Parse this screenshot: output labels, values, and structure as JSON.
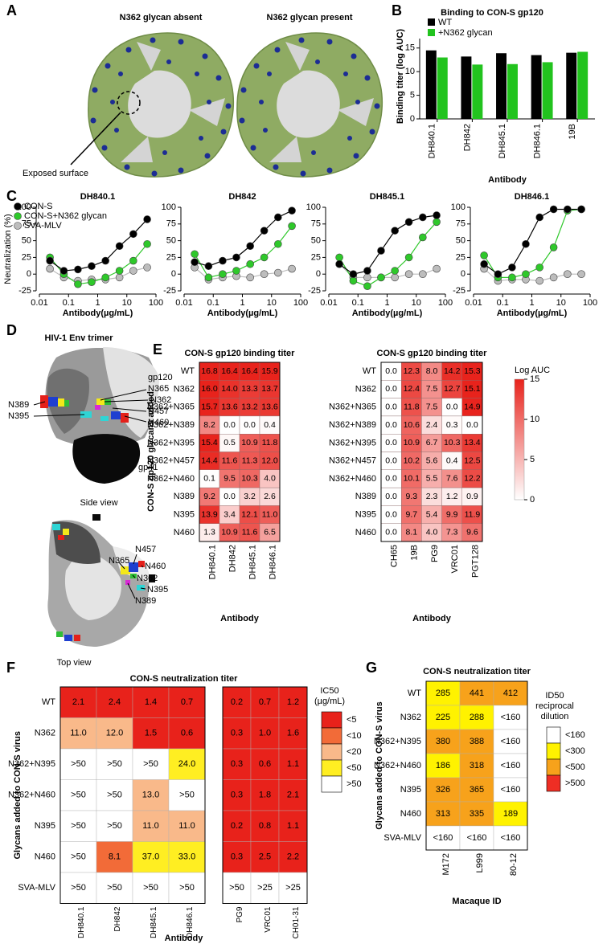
{
  "panel_labels": [
    "A",
    "B",
    "C",
    "D",
    "E",
    "F",
    "G"
  ],
  "structures": {
    "A": {
      "titles": [
        "N362 glycan absent",
        "N362 glycan present"
      ],
      "annotation": "Exposed surface"
    },
    "D": {
      "title": "HIV-1 Env trimer",
      "side_labels": [
        "gp120",
        "N365",
        "N362",
        "N457",
        "N460",
        "N389",
        "N395",
        "gp41"
      ],
      "side_caption": "Side view",
      "top_labels": [
        "N365",
        "N457",
        "N460",
        "N362",
        "N395",
        "N389"
      ],
      "top_caption": "Top view"
    }
  },
  "chart_data": [
    {
      "type": "bar",
      "title": "Binding to CON-S gp120",
      "categories": [
        "DH840.1",
        "DH842",
        "DH845.1",
        "DH846.1",
        "19B"
      ],
      "series": [
        {
          "name": "WT",
          "color": "#000000",
          "values": [
            14.5,
            13.2,
            13.9,
            13.5,
            14.0
          ]
        },
        {
          "name": "+N362 glycan",
          "color": "#22c31e",
          "values": [
            13.0,
            11.5,
            11.6,
            12.0,
            14.2
          ]
        }
      ],
      "ylim": [
        0,
        17
      ],
      "yticks": [
        0,
        5,
        10,
        15
      ],
      "y_label": "Binding titer (log AUC)",
      "x_label": "Antibody",
      "legend": "upper left"
    },
    {
      "type": "line",
      "log_x": true,
      "x": [
        0.023,
        0.069,
        0.21,
        0.62,
        1.85,
        5.6,
        16.7,
        50
      ],
      "xlim": [
        0.01,
        100
      ],
      "xticks": [
        0.01,
        0.1,
        1,
        10,
        100
      ],
      "ylim": [
        -25,
        100
      ],
      "yticks": [
        -25,
        0,
        25,
        50,
        75,
        100
      ],
      "y_label": "Neutralization (%)",
      "x_label": "Antibody(µg/mL)",
      "legend": "upper left",
      "series": [
        {
          "name": "CON-S",
          "color": "#000000"
        },
        {
          "name": "CON-S+N362 glycan",
          "color": "#2ec82a"
        },
        {
          "name": "SVA-MLV",
          "color": "#bdbdbd"
        }
      ],
      "panels": [
        {
          "title": "DH840.1",
          "values": [
            [
              20,
              5,
              7,
              12,
              20,
              42,
              60,
              82
            ],
            [
              25,
              0,
              -15,
              -12,
              -5,
              5,
              20,
              45
            ],
            [
              8,
              -5,
              -10,
              -8,
              -8,
              -5,
              5,
              10
            ]
          ]
        },
        {
          "title": "DH842",
          "values": [
            [
              18,
              12,
              20,
              25,
              42,
              65,
              85,
              95
            ],
            [
              30,
              -5,
              0,
              5,
              15,
              25,
              45,
              72
            ],
            [
              10,
              -8,
              -5,
              -3,
              -5,
              0,
              2,
              8
            ]
          ]
        },
        {
          "title": "DH845.1",
          "values": [
            [
              15,
              0,
              5,
              35,
              65,
              78,
              85,
              88
            ],
            [
              25,
              -10,
              -18,
              -5,
              5,
              25,
              55,
              78
            ],
            [
              15,
              -5,
              -5,
              -5,
              -5,
              0,
              0,
              8
            ]
          ]
        },
        {
          "title": "DH846.1",
          "values": [
            [
              15,
              0,
              10,
              45,
              85,
              97,
              97,
              97
            ],
            [
              28,
              -5,
              -5,
              0,
              10,
              40,
              95,
              97
            ],
            [
              8,
              -10,
              -8,
              -8,
              -10,
              -5,
              0,
              0
            ]
          ]
        }
      ]
    },
    {
      "type": "heatmap",
      "y_label": "CON-S gp120  glycans added",
      "rows": [
        "WT",
        "N362",
        "N362+N365",
        "N362+N389",
        "N362+N395",
        "N362+N457",
        "N362+N460",
        "N389",
        "N395",
        "N460"
      ],
      "zlim": [
        0,
        15
      ],
      "zticks": [
        0,
        5,
        10,
        15
      ],
      "colorbar_title": "Log AUC",
      "colors": [
        "#ffffff",
        "#e8231c"
      ],
      "charts": [
        {
          "title": "CON-S gp120 binding titer",
          "x_label": "Antibody",
          "columns": [
            "DH840.1",
            "DH842",
            "DH845.1",
            "DH846.1"
          ],
          "values": [
            [
              16.8,
              16.4,
              16.4,
              15.9
            ],
            [
              16.0,
              14.0,
              13.3,
              13.7
            ],
            [
              15.7,
              13.6,
              13.2,
              13.6
            ],
            [
              8.2,
              0.0,
              0.0,
              0.4
            ],
            [
              15.4,
              0.5,
              10.9,
              11.8
            ],
            [
              14.4,
              11.6,
              11.3,
              12.0
            ],
            [
              0.1,
              9.5,
              10.3,
              4.0
            ],
            [
              9.2,
              0.0,
              3.2,
              2.6
            ],
            [
              13.9,
              3.4,
              12.1,
              11.0
            ],
            [
              1.3,
              10.9,
              11.6,
              6.5
            ]
          ],
          "value_labels": [
            [
              "16.8",
              "16.4",
              "16.4",
              "15.9"
            ],
            [
              "16.0",
              "14.0",
              "13.3",
              "13.7"
            ],
            [
              "15.7",
              "13.6",
              "13.2",
              "13.6"
            ],
            [
              "8.2",
              "0.0",
              "0.0",
              "0.4"
            ],
            [
              "15.4",
              "0.5",
              "10.9",
              "11.8"
            ],
            [
              "14.4",
              "11.6",
              "11.3",
              "12.0"
            ],
            [
              "0.1",
              "9.5",
              "10.3",
              "4.0"
            ],
            [
              "9.2",
              "0.0",
              "3.2",
              "2.6"
            ],
            [
              "13.9",
              "3.4",
              "12.1",
              "11.0"
            ],
            [
              "1.3",
              "10.9",
              "11.6",
              "6.5"
            ]
          ]
        },
        {
          "title": "CON-S gp120 binding titer",
          "x_label": "Antibody",
          "columns": [
            "CH65",
            "19B",
            "PG9",
            "VRC01",
            "PGT128"
          ],
          "values": [
            [
              0.0,
              12.3,
              8.0,
              14.2,
              15.3
            ],
            [
              0.0,
              12.4,
              7.5,
              12.7,
              15.1
            ],
            [
              0.0,
              11.8,
              7.5,
              0.0,
              14.9
            ],
            [
              0.0,
              10.6,
              2.4,
              0.3,
              0.0
            ],
            [
              0.0,
              10.9,
              6.7,
              10.3,
              13.4
            ],
            [
              0.0,
              10.2,
              5.6,
              0.4,
              12.5
            ],
            [
              0.0,
              10.1,
              5.5,
              7.6,
              12.2
            ],
            [
              0.0,
              9.3,
              2.3,
              1.2,
              0.9
            ],
            [
              0.0,
              9.7,
              5.4,
              9.9,
              11.9
            ],
            [
              0.0,
              8.1,
              4.0,
              7.3,
              9.6
            ]
          ],
          "value_labels": [
            [
              "0.0",
              "12.3",
              "8.0",
              "14.2",
              "15.3"
            ],
            [
              "0.0",
              "12.4",
              "7.5",
              "12.7",
              "15.1"
            ],
            [
              "0.0",
              "11.8",
              "7.5",
              "0.0",
              "14.9"
            ],
            [
              "0.0",
              "10.6",
              "2.4",
              "0.3",
              "0.0"
            ],
            [
              "0.0",
              "10.9",
              "6.7",
              "10.3",
              "13.4"
            ],
            [
              "0.0",
              "10.2",
              "5.6",
              "0.4",
              "12.5"
            ],
            [
              "0.0",
              "10.1",
              "5.5",
              "7.6",
              "12.2"
            ],
            [
              "0.0",
              "9.3",
              "2.3",
              "1.2",
              "0.9"
            ],
            [
              "0.0",
              "9.7",
              "5.4",
              "9.9",
              "11.9"
            ],
            [
              "0.0",
              "8.1",
              "4.0",
              "7.3",
              "9.6"
            ]
          ]
        }
      ]
    },
    {
      "type": "table_heatmap",
      "title": "CON-S neutralization titer",
      "y_label": "Glycans added to CON-S virus",
      "x_label": "Antibody",
      "rows": [
        "WT",
        "N362",
        "N362+N395",
        "N362+N460",
        "N395",
        "N460",
        "SVA-MLV"
      ],
      "column_groups": [
        [
          "DH840.1",
          "DH842",
          "DH845.1",
          "DH846.1"
        ],
        [
          "PG9",
          "VRC01",
          "CH01-31"
        ]
      ],
      "cells": [
        [
          "2.1",
          "2.4",
          "1.4",
          "0.7",
          "0.2",
          "0.7",
          "1.2"
        ],
        [
          "11.0",
          "12.0",
          "1.5",
          "0.6",
          "0.3",
          "1.0",
          "1.6"
        ],
        [
          ">50",
          ">50",
          ">50",
          "24.0",
          "0.3",
          "0.6",
          "1.1"
        ],
        [
          ">50",
          ">50",
          "13.0",
          ">50",
          "0.3",
          "1.8",
          "2.1"
        ],
        [
          ">50",
          ">50",
          "11.0",
          "11.0",
          "0.2",
          "0.8",
          "1.1"
        ],
        [
          ">50",
          "8.1",
          "37.0",
          "33.0",
          "0.3",
          "2.5",
          "2.2"
        ],
        [
          ">50",
          ">50",
          ">50",
          ">50",
          ">50",
          ">25",
          ">25"
        ]
      ],
      "colors": [
        [
          "#e8221b",
          "#e8221b",
          "#e8221b",
          "#e8221b",
          "#e8221b",
          "#e8221b",
          "#e8221b"
        ],
        [
          "#f9b98a",
          "#f9b98a",
          "#e8221b",
          "#e8221b",
          "#e8221b",
          "#e8221b",
          "#e8221b"
        ],
        [
          "#ffffff",
          "#ffffff",
          "#ffffff",
          "#ffee22",
          "#e8221b",
          "#e8221b",
          "#e8221b"
        ],
        [
          "#ffffff",
          "#ffffff",
          "#f9b98a",
          "#ffffff",
          "#e8221b",
          "#e8221b",
          "#e8221b"
        ],
        [
          "#ffffff",
          "#ffffff",
          "#f9b98a",
          "#f9b98a",
          "#e8221b",
          "#e8221b",
          "#e8221b"
        ],
        [
          "#ffffff",
          "#f26b38",
          "#ffee22",
          "#ffee22",
          "#e8221b",
          "#e8221b",
          "#e8221b"
        ],
        [
          "#ffffff",
          "#ffffff",
          "#ffffff",
          "#ffffff",
          "#ffffff",
          "#ffffff",
          "#ffffff"
        ]
      ],
      "legend_title": [
        "IC50",
        "(µg/mL)"
      ],
      "legend": [
        {
          "label": "<5",
          "color": "#e8221b"
        },
        {
          "label": "<10",
          "color": "#f26b38"
        },
        {
          "label": "<20",
          "color": "#f9b98a"
        },
        {
          "label": "<50",
          "color": "#ffee22"
        },
        {
          "label": ">50",
          "color": "#ffffff"
        }
      ]
    },
    {
      "type": "table_heatmap",
      "title": "CON-S neutralization titer",
      "y_label": "Glycans added to CON-S virus",
      "x_label": "Macaque ID",
      "rows": [
        "WT",
        "N362",
        "N362+N395",
        "N362+N460",
        "N395",
        "N460",
        "SVA-MLV"
      ],
      "column_groups": [
        [
          "M172",
          "L999",
          "80-12"
        ]
      ],
      "cells": [
        [
          "285",
          "441",
          "412"
        ],
        [
          "225",
          "288",
          "<160"
        ],
        [
          "380",
          "388",
          "<160"
        ],
        [
          "186",
          "318",
          "<160"
        ],
        [
          "326",
          "365",
          "<160"
        ],
        [
          "313",
          "335",
          "189"
        ],
        [
          "<160",
          "<160",
          "<160"
        ]
      ],
      "colors": [
        [
          "#fff200",
          "#f7a21b",
          "#f7a21b"
        ],
        [
          "#fff200",
          "#fff200",
          "#ffffff"
        ],
        [
          "#f7a21b",
          "#f7a21b",
          "#ffffff"
        ],
        [
          "#fff200",
          "#f7a21b",
          "#ffffff"
        ],
        [
          "#f7a21b",
          "#f7a21b",
          "#ffffff"
        ],
        [
          "#f7a21b",
          "#f7a21b",
          "#fff200"
        ],
        [
          "#ffffff",
          "#ffffff",
          "#ffffff"
        ]
      ],
      "legend_title": [
        "ID50",
        "reciprocal",
        "dilution"
      ],
      "legend": [
        {
          "label": "<160",
          "color": "#ffffff"
        },
        {
          "label": "<300",
          "color": "#fff200"
        },
        {
          "label": "<500",
          "color": "#f7a21b"
        },
        {
          "label": ">500",
          "color": "#ee2e24"
        }
      ]
    }
  ]
}
